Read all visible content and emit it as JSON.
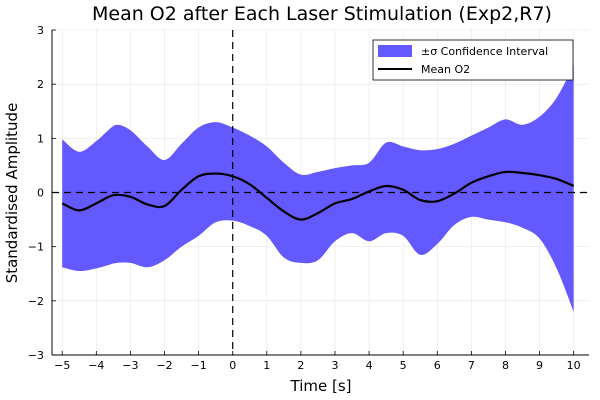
{
  "chart_data": {
    "type": "area",
    "title": "Mean O2 after Each Laser Stimulation (Exp2,R7)",
    "xlabel": "Time [s]",
    "ylabel": "Standardised Amplitude",
    "xlim": [
      -5.3,
      10.45
    ],
    "ylim": [
      -3,
      3
    ],
    "xticks": [
      -5,
      -4,
      -3,
      -2,
      -1,
      0,
      1,
      2,
      3,
      4,
      5,
      6,
      7,
      8,
      9,
      10
    ],
    "xtick_labels": [
      "−5",
      "−4",
      "−3",
      "−2",
      "−1",
      "0",
      "1",
      "2",
      "3",
      "4",
      "5",
      "6",
      "7",
      "8",
      "9",
      "10"
    ],
    "yticks": [
      -3,
      -2,
      -1,
      0,
      1,
      2,
      3
    ],
    "ytick_labels": [
      "−3",
      "−2",
      "−1",
      "0",
      "1",
      "2",
      "3"
    ],
    "grid": true,
    "legend_position": "top-right",
    "reference_lines": {
      "vertical_x": 0,
      "horizontal_y": 0,
      "style": "dashed"
    },
    "series": [
      {
        "name": "±σ Confidence Interval",
        "kind": "band",
        "color": "#6459ff",
        "x": [
          -5,
          -4.5,
          -4,
          -3.7,
          -3.4,
          -3,
          -2.5,
          -2,
          -1.5,
          -1,
          -0.5,
          0,
          0.5,
          1,
          1.5,
          2,
          2.5,
          3,
          3.5,
          4,
          4.5,
          5,
          5.5,
          6,
          6.5,
          7,
          7.5,
          8,
          8.5,
          9,
          9.5,
          10
        ],
        "upper": [
          0.98,
          0.75,
          0.95,
          1.12,
          1.25,
          1.15,
          0.85,
          0.6,
          0.9,
          1.2,
          1.3,
          1.2,
          1.05,
          0.85,
          0.55,
          0.33,
          0.38,
          0.45,
          0.5,
          0.55,
          0.92,
          0.85,
          0.78,
          0.8,
          0.9,
          1.05,
          1.2,
          1.35,
          1.25,
          1.4,
          1.75,
          2.35
        ],
        "lower": [
          -1.38,
          -1.45,
          -1.4,
          -1.35,
          -1.3,
          -1.3,
          -1.38,
          -1.25,
          -1.0,
          -0.8,
          -0.55,
          -0.52,
          -0.62,
          -0.8,
          -1.2,
          -1.3,
          -1.25,
          -0.9,
          -0.75,
          -0.9,
          -0.75,
          -0.8,
          -1.15,
          -0.95,
          -0.6,
          -0.45,
          -0.5,
          -0.55,
          -0.65,
          -0.85,
          -1.4,
          -2.2
        ]
      },
      {
        "name": "Mean O2",
        "kind": "line",
        "color": "#000000",
        "x": [
          -5,
          -4.5,
          -4,
          -3.5,
          -3,
          -2.5,
          -2,
          -1.5,
          -1,
          -0.5,
          0,
          0.5,
          1,
          1.5,
          2,
          2.5,
          3,
          3.5,
          4,
          4.5,
          5,
          5.5,
          6,
          6.5,
          7,
          7.5,
          8,
          8.5,
          9,
          9.5,
          10
        ],
        "y": [
          -0.2,
          -0.33,
          -0.2,
          -0.05,
          -0.08,
          -0.22,
          -0.25,
          0.05,
          0.3,
          0.35,
          0.3,
          0.15,
          -0.1,
          -0.35,
          -0.5,
          -0.38,
          -0.2,
          -0.12,
          0.02,
          0.12,
          0.05,
          -0.14,
          -0.16,
          -0.02,
          0.18,
          0.3,
          0.38,
          0.36,
          0.32,
          0.25,
          0.12
        ]
      }
    ]
  }
}
